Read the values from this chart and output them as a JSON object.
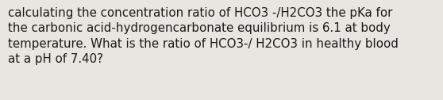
{
  "text": "calculating the concentration ratio of HCO3 -/H2CO3 the pKa for\nthe carbonic acid-hydrogencarbonate equilibrium is 6.1 at body\ntemperature. What is the ratio of HCO3-/ H2CO3 in healthy blood\nat a pH of 7.40?",
  "background_color": "#e8e6e0",
  "text_color": "#1a1a1a",
  "font_size": 10.8,
  "fig_width": 5.58,
  "fig_height": 1.26,
  "dpi": 100
}
